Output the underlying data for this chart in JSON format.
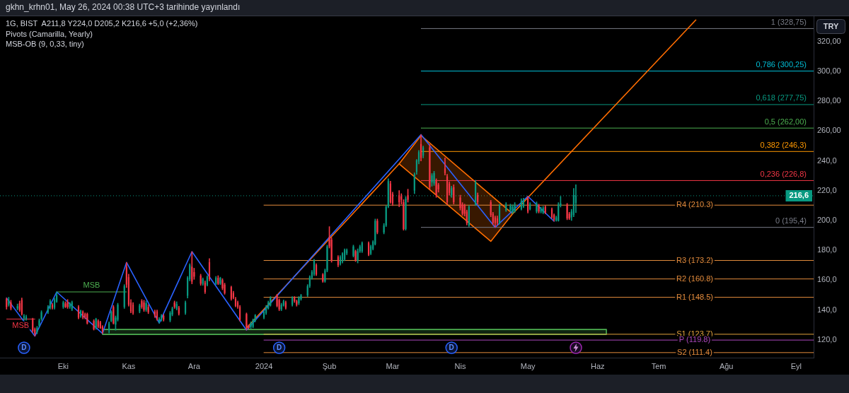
{
  "chart_data": {
    "type": "candlestick",
    "title": "gkhn_krhn01, May 26, 2024 00:38 UTC+3 tarihinde yayınlandı",
    "subtitle": "1G, BIST  A211,8 Y224,0 D205,2 K216,6 +5,0 (+2,36%)",
    "ylabel": "TRY",
    "annotations": [
      "Pivots (Camarilla, Yearly)",
      "MSB-OB (9, 0,33, tiny)",
      {
        "text": "D",
        "x": "2023-09-14"
      },
      {
        "text": "D",
        "x": "2024-01-09"
      },
      {
        "text": "D",
        "x": "2024-03-28"
      }
    ],
    "marker": "none",
    "xlim": [
      "2023-09-03",
      "2024-09-10"
    ],
    "xticks": [
      {
        "value": "2023-10-02",
        "label": "Eki"
      },
      {
        "value": "2023-11-01",
        "label": "Kas"
      },
      {
        "value": "2023-12-01",
        "label": "Ara"
      },
      {
        "value": "2024-01-02",
        "label": "2024"
      },
      {
        "value": "2024-02-01",
        "label": "Şub"
      },
      {
        "value": "2024-03-01",
        "label": "Mar"
      },
      {
        "value": "2024-04-01",
        "label": "Nis"
      },
      {
        "value": "2024-05-02",
        "label": "May"
      },
      {
        "value": "2024-06-03",
        "label": "Haz"
      },
      {
        "value": "2024-07-01",
        "label": "Tem"
      },
      {
        "value": "2024-08-01",
        "label": "Ağu"
      },
      {
        "value": "2024-09-02",
        "label": "Eyl"
      }
    ],
    "ylim": [
      108,
      337
    ],
    "yticks": [
      {
        "value": 120,
        "label": "120,0"
      },
      {
        "value": 140,
        "label": "140,0"
      },
      {
        "value": 160,
        "label": "160,0"
      },
      {
        "value": 180,
        "label": "180,0"
      },
      {
        "value": 200,
        "label": "200,0"
      },
      {
        "value": 220,
        "label": "220,0"
      },
      {
        "value": 240,
        "label": "240,0"
      },
      {
        "value": 260,
        "label": "260,00"
      },
      {
        "value": 280,
        "label": "280,00"
      },
      {
        "value": 300,
        "label": "300,00"
      },
      {
        "value": 320,
        "label": "320,00"
      }
    ],
    "ref_lines": [
      {
        "axis": "y",
        "value": 216.6,
        "label": "216,6",
        "color": "#089981",
        "line_style": "dotted"
      }
    ],
    "x": [
      "2023-09-06",
      "2023-09-07",
      "2023-09-08",
      "2023-09-11",
      "2023-09-12",
      "2023-09-13",
      "2023-09-14",
      "2023-09-15",
      "2023-09-18",
      "2023-09-19",
      "2023-09-20",
      "2023-09-21",
      "2023-09-22",
      "2023-09-25",
      "2023-09-26",
      "2023-09-27",
      "2023-09-28",
      "2023-09-29",
      "2023-10-02",
      "2023-10-03",
      "2023-10-04",
      "2023-10-05",
      "2023-10-06",
      "2023-10-09",
      "2023-10-10",
      "2023-10-11",
      "2023-10-12",
      "2023-10-13",
      "2023-10-16",
      "2023-10-17",
      "2023-10-18",
      "2023-10-19",
      "2023-10-20",
      "2023-10-23",
      "2023-10-24",
      "2023-10-25",
      "2023-10-26",
      "2023-10-27",
      "2023-10-30",
      "2023-10-31",
      "2023-11-01",
      "2023-11-02",
      "2023-11-03",
      "2023-11-06",
      "2023-11-07",
      "2023-11-08",
      "2023-11-09",
      "2023-11-10",
      "2023-11-13",
      "2023-11-14",
      "2023-11-15",
      "2023-11-16",
      "2023-11-17",
      "2023-11-20",
      "2023-11-21",
      "2023-11-22",
      "2023-11-23",
      "2023-11-24",
      "2023-11-27",
      "2023-11-28",
      "2023-11-29",
      "2023-11-30",
      "2023-12-01",
      "2023-12-04",
      "2023-12-05",
      "2023-12-06",
      "2023-12-07",
      "2023-12-08",
      "2023-12-11",
      "2023-12-12",
      "2023-12-13",
      "2023-12-14",
      "2023-12-15",
      "2023-12-18",
      "2023-12-19",
      "2023-12-20",
      "2023-12-21",
      "2023-12-22",
      "2023-12-25",
      "2023-12-26",
      "2023-12-27",
      "2023-12-28",
      "2023-12-29",
      "2024-01-02",
      "2024-01-03",
      "2024-01-04",
      "2024-01-05",
      "2024-01-08",
      "2024-01-09",
      "2024-01-10",
      "2024-01-11",
      "2024-01-12",
      "2024-01-15",
      "2024-01-16",
      "2024-01-17",
      "2024-01-18",
      "2024-01-19",
      "2024-01-22",
      "2024-01-23",
      "2024-01-24",
      "2024-01-25",
      "2024-01-26",
      "2024-01-29",
      "2024-01-30",
      "2024-01-31",
      "2024-02-01",
      "2024-02-02",
      "2024-02-05",
      "2024-02-06",
      "2024-02-07",
      "2024-02-08",
      "2024-02-09",
      "2024-02-12",
      "2024-02-13",
      "2024-02-14",
      "2024-02-15",
      "2024-02-16",
      "2024-02-19",
      "2024-02-20",
      "2024-02-21",
      "2024-02-22",
      "2024-02-23",
      "2024-02-26",
      "2024-02-27",
      "2024-02-28",
      "2024-02-29",
      "2024-03-01",
      "2024-03-04",
      "2024-03-05",
      "2024-03-06",
      "2024-03-07",
      "2024-03-08",
      "2024-03-11",
      "2024-03-12",
      "2024-03-13",
      "2024-03-14",
      "2024-03-15",
      "2024-03-18",
      "2024-03-19",
      "2024-03-20",
      "2024-03-21",
      "2024-03-22",
      "2024-03-25",
      "2024-03-26",
      "2024-03-27",
      "2024-03-28",
      "2024-03-29",
      "2024-04-01",
      "2024-04-02",
      "2024-04-03",
      "2024-04-04",
      "2024-04-05",
      "2024-04-08",
      "2024-04-09",
      "2024-04-15",
      "2024-04-16",
      "2024-04-17",
      "2024-04-18",
      "2024-04-19",
      "2024-04-22",
      "2024-04-24",
      "2024-04-25",
      "2024-04-26",
      "2024-04-29",
      "2024-04-30",
      "2024-05-02",
      "2024-05-03",
      "2024-05-06",
      "2024-05-07",
      "2024-05-08",
      "2024-05-09",
      "2024-05-10",
      "2024-05-13",
      "2024-05-14",
      "2024-05-15",
      "2024-05-16",
      "2024-05-17",
      "2024-05-20",
      "2024-05-21",
      "2024-05-22",
      "2024-05-23",
      "2024-05-24"
    ],
    "ohlc": [
      [
        147.4,
        148,
        140.5,
        142
      ],
      [
        143.5,
        148.5,
        142.5,
        146.6
      ],
      [
        145,
        146.5,
        140,
        141
      ],
      [
        141,
        144,
        140,
        142.5
      ],
      [
        144.5,
        146,
        139,
        140
      ],
      [
        146.6,
        148,
        136.5,
        137.3
      ],
      [
        134.5,
        137,
        133,
        136
      ],
      [
        134,
        136.5,
        133,
        135.5
      ],
      [
        133.5,
        134.5,
        125,
        126
      ],
      [
        127,
        128,
        122.5,
        124
      ],
      [
        125,
        129,
        124,
        128
      ],
      [
        129.5,
        134,
        128.5,
        133
      ],
      [
        134,
        139.5,
        133,
        138.5
      ],
      [
        138.5,
        143,
        137.5,
        142
      ],
      [
        141.5,
        147,
        140.5,
        146
      ],
      [
        143.5,
        144.5,
        140.5,
        141.5
      ],
      [
        141.5,
        148,
        140.5,
        147
      ],
      [
        145.5,
        152.1,
        145,
        150
      ],
      [
        142,
        146,
        141,
        145.1
      ],
      [
        144.3,
        145.5,
        141.5,
        142
      ],
      [
        145.1,
        147,
        141,
        142
      ],
      [
        142,
        145,
        141,
        144.3
      ],
      [
        140.4,
        146,
        139.5,
        145.1
      ],
      [
        142,
        143,
        134,
        134.9
      ],
      [
        135.7,
        140,
        135,
        139.6
      ],
      [
        138.8,
        139.5,
        134,
        134.9
      ],
      [
        137.3,
        138,
        134,
        134.9
      ],
      [
        137.3,
        138,
        130.5,
        131
      ],
      [
        132.6,
        133.5,
        126.5,
        127.1
      ],
      [
        127.9,
        134.5,
        127,
        134.1
      ],
      [
        132.6,
        133.5,
        128,
        128.7
      ],
      [
        131.8,
        132.5,
        127.5,
        127.9
      ],
      [
        128.7,
        129.5,
        124.2,
        125.6
      ],
      [
        126.4,
        132,
        124.5,
        131
      ],
      [
        132.6,
        139.5,
        132,
        138.8
      ],
      [
        142,
        143,
        130.5,
        131
      ],
      [
        130.2,
        136,
        126.4,
        134.9
      ],
      [
        133.4,
        144.5,
        132.5,
        143.5
      ],
      [
        142,
        157,
        141,
        156
      ],
      [
        169,
        171.9,
        155,
        157
      ],
      [
        162,
        164,
        142.5,
        143.5
      ],
      [
        145,
        147,
        138,
        139
      ],
      [
        143.5,
        145,
        137,
        138
      ],
      [
        139,
        144,
        138,
        143
      ],
      [
        146,
        147,
        141,
        142
      ],
      [
        145,
        146.5,
        139,
        140
      ],
      [
        140,
        146,
        139,
        144.5
      ],
      [
        142,
        143.5,
        137.5,
        138.5
      ],
      [
        139,
        140,
        135,
        136
      ],
      [
        139,
        140,
        133,
        133.5
      ],
      [
        132.5,
        135,
        131.2,
        134
      ],
      [
        133.5,
        137,
        132.5,
        136
      ],
      [
        136,
        137,
        132.5,
        133.5
      ],
      [
        133,
        139,
        132,
        138
      ],
      [
        137,
        142,
        136,
        141
      ],
      [
        145,
        146,
        141,
        142
      ],
      [
        141,
        145.5,
        140,
        144
      ],
      [
        141.5,
        142.5,
        136.5,
        137.5
      ],
      [
        138,
        146,
        137,
        145
      ],
      [
        149.5,
        162.5,
        148,
        161.5
      ],
      [
        160.7,
        171,
        159.5,
        170
      ],
      [
        169,
        179.1,
        157.5,
        159
      ],
      [
        165.4,
        168,
        160.5,
        162.3
      ],
      [
        163,
        164,
        156.5,
        157.6
      ],
      [
        157.6,
        161.5,
        156.5,
        160.7
      ],
      [
        158.4,
        159.5,
        151,
        152.1
      ],
      [
        156.8,
        163,
        156,
        162.3
      ],
      [
        172,
        174.4,
        159.5,
        160.7
      ],
      [
        157.6,
        162.5,
        157,
        161.5
      ],
      [
        161.5,
        163,
        157,
        157.6
      ],
      [
        157.6,
        162,
        157,
        161.5
      ],
      [
        160,
        161,
        153.5,
        154.5
      ],
      [
        157,
        158,
        150.5,
        151.3
      ],
      [
        155.3,
        156,
        146.5,
        147.4
      ],
      [
        151.3,
        152.5,
        147.4,
        148.2
      ],
      [
        147.4,
        148.5,
        142,
        142.7
      ],
      [
        145.1,
        146,
        141,
        142
      ],
      [
        142,
        143,
        132.6,
        133.4
      ],
      [
        137.3,
        138,
        126.5,
        128.7
      ],
      [
        129,
        130,
        127.2,
        127.9
      ],
      [
        128.7,
        132,
        127.5,
        131
      ],
      [
        128.7,
        134,
        128,
        133.4
      ],
      [
        132.6,
        137,
        132,
        136.5
      ],
      [
        134.9,
        139.5,
        134,
        138.8
      ],
      [
        138,
        143,
        137,
        142
      ],
      [
        141,
        146,
        140.5,
        145.1
      ],
      [
        143,
        149,
        142.5,
        148.2
      ],
      [
        149.8,
        150.5,
        142,
        142.7
      ],
      [
        146.7,
        147.5,
        139.5,
        140.4
      ],
      [
        140.4,
        144.5,
        139.5,
        143.5
      ],
      [
        143,
        146.7,
        142.5,
        145.9
      ],
      [
        145.1,
        146,
        140.5,
        141.5
      ],
      [
        143.5,
        149,
        142.5,
        148.2
      ],
      [
        148.2,
        149,
        145,
        145.9
      ],
      [
        145.9,
        146.7,
        142.5,
        143.5
      ],
      [
        144.5,
        149,
        143.5,
        148.2
      ],
      [
        147.4,
        150.5,
        146.5,
        149.8
      ],
      [
        149.8,
        157,
        149,
        156
      ],
      [
        156,
        163,
        155,
        162.3
      ],
      [
        161.5,
        166.5,
        160.5,
        165.4
      ],
      [
        164,
        174,
        163,
        173.2
      ],
      [
        170.1,
        171,
        163,
        163.8
      ],
      [
        163.8,
        164.5,
        158.5,
        159.1
      ],
      [
        159.1,
        167.5,
        158.5,
        166.5
      ],
      [
        166.5,
        183.5,
        165.5,
        182.6
      ],
      [
        188.8,
        195.9,
        181.5,
        182.6
      ],
      [
        187.2,
        188.5,
        172,
        173.2
      ],
      [
        175.5,
        176.5,
        169,
        170.1
      ],
      [
        171,
        176.5,
        170,
        175.5
      ],
      [
        172.5,
        178.5,
        171.5,
        177.9
      ],
      [
        174,
        181,
        173,
        180.2
      ],
      [
        178,
        181,
        177,
        180.2
      ],
      [
        176.3,
        183.5,
        175.5,
        182.6
      ],
      [
        179.4,
        180.2,
        172.5,
        173.2
      ],
      [
        173.2,
        181,
        171.5,
        179.4
      ],
      [
        179.4,
        183.5,
        178.5,
        182.6
      ],
      [
        179.4,
        185.7,
        178.5,
        184.9
      ],
      [
        184.9,
        185.7,
        176.3,
        177
      ],
      [
        177.8,
        183.5,
        177,
        182.6
      ],
      [
        181,
        186.5,
        180.2,
        185.7
      ],
      [
        184.1,
        201,
        183.5,
        199.8
      ],
      [
        199.8,
        201,
        191,
        192
      ],
      [
        192,
        198,
        191,
        196.7
      ],
      [
        196.7,
        210,
        195.9,
        209.2
      ],
      [
        209.2,
        228,
        208.5,
        226.4
      ],
      [
        224.8,
        226.4,
        211.5,
        212.3
      ],
      [
        217.8,
        219,
        210,
        211.5
      ],
      [
        217,
        220.1,
        209.2,
        212.3
      ],
      [
        216.2,
        218,
        211,
        213.9
      ],
      [
        212.3,
        214,
        193.5,
        194.3
      ],
      [
        194.3,
        216,
        193.5,
        214.6
      ],
      [
        217,
        221,
        212.3,
        213.9
      ],
      [
        220.1,
        232,
        218,
        231
      ],
      [
        232.6,
        241,
        231,
        240.4
      ],
      [
        239.6,
        247,
        238,
        245.9
      ],
      [
        251.3,
        257.6,
        240,
        242
      ],
      [
        243.5,
        250,
        242,
        249
      ],
      [
        249,
        251,
        221,
        222.4
      ],
      [
        225.6,
        231.5,
        223,
        230.2
      ],
      [
        224.8,
        233,
        223.5,
        231.8
      ],
      [
        226.4,
        228,
        215.5,
        217
      ],
      [
        224,
        225,
        219,
        220.9
      ],
      [
        234.9,
        242,
        230.5,
        231.8
      ],
      [
        229.5,
        231,
        211,
        212.3
      ],
      [
        224.8,
        226,
        217,
        218.5
      ],
      [
        217,
        223,
        215.5,
        221.7
      ],
      [
        222.4,
        224,
        211,
        212.3
      ],
      [
        215.4,
        217,
        207,
        208.4
      ],
      [
        210.7,
        212,
        203.5,
        204.5
      ],
      [
        210,
        211,
        203,
        204.5
      ],
      [
        206,
        207,
        197,
        198.3
      ],
      [
        196.7,
        210,
        196,
        209.2
      ],
      [
        210.7,
        227,
        210,
        225.6
      ],
      [
        217,
        218.5,
        211,
        212.3
      ],
      [
        212.3,
        213.5,
        202.5,
        203.7
      ],
      [
        204.5,
        205.5,
        197,
        198.3
      ],
      [
        202.1,
        203,
        195.4,
        198.3
      ],
      [
        201.4,
        203,
        197,
        198.3
      ],
      [
        198.3,
        211,
        197.5,
        210
      ],
      [
        206.8,
        212,
        206,
        210.7
      ],
      [
        206.8,
        211,
        206,
        210
      ],
      [
        205.3,
        210.5,
        204.5,
        209.2
      ],
      [
        206,
        212,
        205.5,
        210.7
      ],
      [
        207.6,
        214.6,
        207,
        213.1
      ],
      [
        209.2,
        215,
        208.5,
        213.9
      ],
      [
        215.4,
        216.2,
        205,
        206
      ],
      [
        207.6,
        212,
        207,
        210.7
      ],
      [
        206,
        212.5,
        205,
        211.5
      ],
      [
        210,
        211,
        205,
        206
      ],
      [
        206,
        209,
        205,
        207.6
      ],
      [
        205.3,
        209.5,
        204.5,
        208.4
      ],
      [
        209.2,
        210,
        204.5,
        205.3
      ],
      [
        207.6,
        208.5,
        201.4,
        202.1
      ],
      [
        203.7,
        204.5,
        199.5,
        200.6
      ],
      [
        200,
        203,
        199.5,
        202.1
      ],
      [
        199.8,
        212,
        199.5,
        210.7
      ],
      [
        210,
        216.2,
        209,
        211.5
      ],
      [
        210.7,
        211.5,
        200.5,
        201.4
      ],
      [
        204.5,
        205.5,
        200.6,
        201.4
      ],
      [
        202.1,
        207.5,
        200,
        206
      ],
      [
        203.7,
        221.5,
        202.5,
        217
      ],
      [
        211.8,
        224,
        205.2,
        216.6
      ]
    ],
    "colors": [
      "#f23645",
      "#089981",
      "#f23645",
      "#089981",
      "#f23645",
      "#f23645",
      "#089981",
      "#089981",
      "#f23645",
      "#f23645",
      "#089981",
      "#089981",
      "#089981",
      "#089981",
      "#089981",
      "#f23645",
      "#089981",
      "#089981",
      "#089981",
      "#f23645",
      "#f23645",
      "#089981",
      "#089981",
      "#f23645",
      "#089981",
      "#f23645",
      "#f23645",
      "#f23645",
      "#f23645",
      "#089981",
      "#f23645",
      "#f23645",
      "#f23645",
      "#089981",
      "#089981",
      "#f23645",
      "#089981",
      "#089981",
      "#089981",
      "#f23645",
      "#f23645",
      "#f23645",
      "#f23645",
      "#089981",
      "#f23645",
      "#f23645",
      "#089981",
      "#f23645",
      "#f23645",
      "#f23645",
      "#089981",
      "#089981",
      "#f23645",
      "#089981",
      "#089981",
      "#f23645",
      "#089981",
      "#f23645",
      "#089981",
      "#089981",
      "#089981",
      "#f23645",
      "#f23645",
      "#f23645",
      "#089981",
      "#f23645",
      "#089981",
      "#f23645",
      "#089981",
      "#f23645",
      "#089981",
      "#f23645",
      "#f23645",
      "#f23645",
      "#f23645",
      "#f23645",
      "#f23645",
      "#f23645",
      "#f23645",
      "#f23645",
      "#089981",
      "#089981",
      "#089981",
      "#089981",
      "#089981",
      "#089981",
      "#089981",
      "#f23645",
      "#f23645",
      "#089981",
      "#089981",
      "#f23645",
      "#089981",
      "#f23645",
      "#f23645",
      "#089981",
      "#089981",
      "#089981",
      "#089981",
      "#089981",
      "#089981",
      "#f23645",
      "#f23645",
      "#089981",
      "#089981",
      "#f23645",
      "#f23645",
      "#f23645",
      "#089981",
      "#089981",
      "#089981",
      "#089981",
      "#089981",
      "#f23645",
      "#089981",
      "#089981",
      "#089981",
      "#f23645",
      "#089981",
      "#089981",
      "#089981",
      "#f23645",
      "#089981",
      "#089981",
      "#089981",
      "#f23645",
      "#f23645",
      "#f23645",
      "#f23645",
      "#f23645",
      "#089981",
      "#f23645",
      "#089981",
      "#089981",
      "#089981",
      "#f23645",
      "#089981",
      "#f23645",
      "#089981",
      "#089981",
      "#f23645",
      "#f23645",
      "#f23645",
      "#f23645",
      "#f23645",
      "#089981",
      "#f23645",
      "#f23645",
      "#f23645",
      "#f23645",
      "#f23645",
      "#089981",
      "#089981",
      "#f23645",
      "#f23645",
      "#f23645",
      "#f23645",
      "#f23645",
      "#089981",
      "#089981",
      "#089981",
      "#089981",
      "#089981",
      "#089981",
      "#089981",
      "#f23645",
      "#089981",
      "#089981",
      "#f23645",
      "#089981",
      "#089981",
      "#f23645",
      "#f23645",
      "#f23645",
      "#089981",
      "#089981",
      "#089981",
      "#f23645",
      "#f23645",
      "#089981",
      "#089981",
      "#089981"
    ],
    "series": [
      {
        "type": "line",
        "color": "#2962ff",
        "x": [
          "2023-09-06",
          "2023-09-19",
          "2023-09-29",
          "2023-10-20",
          "2023-10-31",
          "2023-11-15",
          "2023-11-30",
          "2023-12-25",
          "2024-03-14",
          "2024-04-17",
          "2024-05-02",
          "2024-05-14"
        ],
        "values": [
          148,
          122.5,
          152.1,
          124.2,
          171.9,
          131.2,
          179.1,
          126.5,
          257.6,
          195.4,
          216.2,
          199.5
        ]
      },
      {
        "type": "line",
        "color": "#ff6d00",
        "x": [
          "2023-12-25",
          "2024-03-04"
        ],
        "values": [
          127.9,
          238
        ]
      },
      {
        "type": "area",
        "color": "#ff6d00",
        "x": [
          "2024-03-04",
          "2024-03-14",
          "2024-04-25",
          "2024-04-15",
          "2024-03-04"
        ],
        "values": [
          238,
          257,
          204.5,
          186,
          238
        ]
      },
      {
        "type": "line",
        "color": "#ff6d00",
        "x": [
          "2024-04-25",
          "2024-07-18"
        ],
        "values": [
          204.5,
          334.5
        ]
      },
      {
        "type": "line",
        "name": "MSB",
        "color": "#4caf50",
        "x": [
          "2023-09-29",
          "2023-10-31"
        ],
        "values": [
          152.1,
          152.1
        ]
      },
      {
        "type": "line",
        "name": "MSB",
        "color": "#f23645",
        "x": [
          "2023-09-06",
          "2023-09-19"
        ],
        "values": [
          133.9,
          133.9
        ]
      },
      {
        "type": "area",
        "color": "#4caf50",
        "x": [
          "2023-10-20",
          "2024-06-07",
          "2024-06-07",
          "2023-10-20",
          "2023-10-20"
        ],
        "values": [
          126.9,
          126.9,
          123.6,
          123.6,
          126.9
        ]
      },
      {
        "type": "step",
        "name": "R4 (210.3)",
        "color": "#e38b3c",
        "x": [
          "2024-01-02",
          "2024-09-10"
        ],
        "values": [
          210.3,
          210.3
        ]
      },
      {
        "type": "step",
        "name": "R3 (173.2)",
        "color": "#e38b3c",
        "x": [
          "2024-01-02",
          "2024-09-10"
        ],
        "values": [
          173.2,
          173.2
        ]
      },
      {
        "type": "step",
        "name": "R2 (160.8)",
        "color": "#e38b3c",
        "x": [
          "2024-01-02",
          "2024-09-10"
        ],
        "values": [
          160.8,
          160.8
        ]
      },
      {
        "type": "step",
        "name": "R1 (148.5)",
        "color": "#e38b3c",
        "x": [
          "2024-01-02",
          "2024-09-10"
        ],
        "values": [
          148.5,
          148.5
        ]
      },
      {
        "type": "step",
        "name": "S1 (123.7)",
        "color": "#e0a23c",
        "x": [
          "2024-01-02",
          "2024-09-10"
        ],
        "values": [
          123.7,
          123.7
        ]
      },
      {
        "type": "step",
        "name": "P (119.8)",
        "color": "#ab47bc",
        "x": [
          "2024-01-02",
          "2024-09-10"
        ],
        "values": [
          119.8,
          119.8
        ]
      },
      {
        "type": "step",
        "name": "S2 (111.4)",
        "color": "#e38b3c",
        "x": [
          "2024-01-02",
          "2024-09-10"
        ],
        "values": [
          111.4,
          111.4
        ]
      },
      {
        "type": "line",
        "name": "1 (328,75)",
        "color": "#787b86",
        "x": [
          "2024-03-14",
          "2024-09-10"
        ],
        "values": [
          328.75,
          328.75
        ]
      },
      {
        "type": "line",
        "name": "0,786 (300,25)",
        "color": "#00bcd4",
        "x": [
          "2024-03-14",
          "2024-09-10"
        ],
        "values": [
          300.25,
          300.25
        ]
      },
      {
        "type": "line",
        "name": "0,618 (277,75)",
        "color": "#089981",
        "x": [
          "2024-03-14",
          "2024-09-10"
        ],
        "values": [
          277.75,
          277.75
        ]
      },
      {
        "type": "line",
        "name": "0,5 (262,00)",
        "color": "#4caf50",
        "x": [
          "2024-03-14",
          "2024-09-10"
        ],
        "values": [
          262,
          262
        ]
      },
      {
        "type": "line",
        "name": "0,382 (246,3)",
        "color": "#ff9800",
        "x": [
          "2024-03-14",
          "2024-09-10"
        ],
        "values": [
          246.3,
          246.3
        ]
      },
      {
        "type": "line",
        "name": "0,236 (226,8)",
        "color": "#f23645",
        "x": [
          "2024-03-14",
          "2024-09-10"
        ],
        "values": [
          226.8,
          226.8
        ]
      },
      {
        "type": "line",
        "name": "0 (195,4)",
        "color": "#787b86",
        "x": [
          "2024-03-14",
          "2024-09-10"
        ],
        "values": [
          195.4,
          195.4
        ]
      }
    ]
  }
}
